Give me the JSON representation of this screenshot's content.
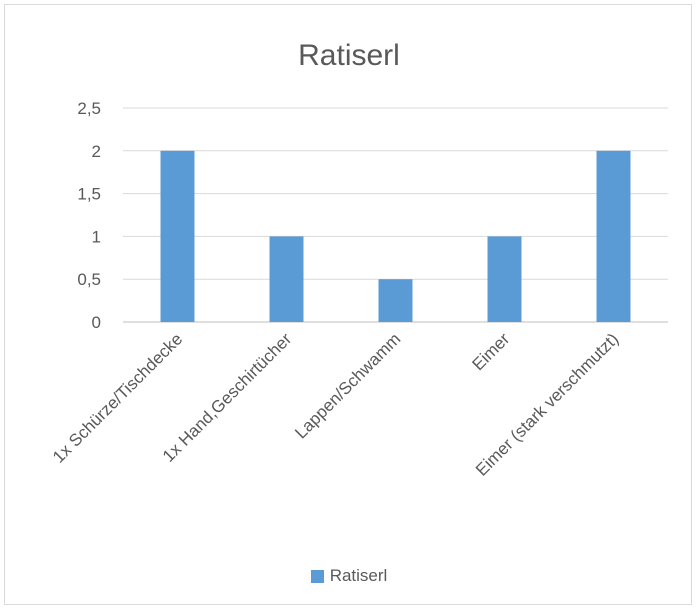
{
  "chart_data": {
    "type": "bar",
    "title": "Ratiserl",
    "categories": [
      "1x Schürze/Tischdecke",
      "1x Hand,Geschirtücher",
      "Lappen/Schwamm",
      "Eimer",
      "Eimer (stark verschmutzt)"
    ],
    "series": [
      {
        "name": "Ratiserl",
        "values": [
          2,
          1,
          0.5,
          1,
          2
        ],
        "color": "#5B9BD5"
      }
    ],
    "ylim": [
      0,
      2.5
    ],
    "y_ticks": [
      "0",
      "0,5",
      "1",
      "1,5",
      "2",
      "2,5"
    ],
    "xlabel": "",
    "ylabel": "",
    "grid": true,
    "legend_position": "bottom"
  }
}
